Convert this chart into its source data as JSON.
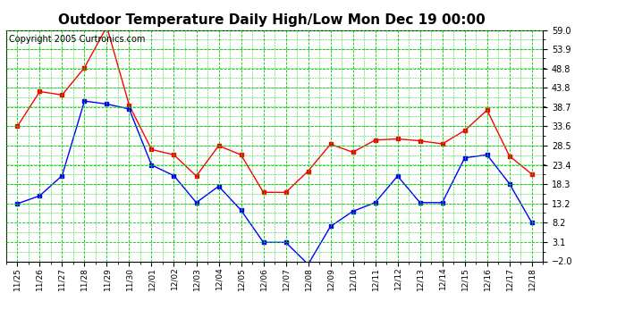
{
  "title": "Outdoor Temperature Daily High/Low Mon Dec 19 00:00",
  "copyright": "Copyright 2005 Curtronics.com",
  "x_labels": [
    "11/25",
    "11/26",
    "11/27",
    "11/28",
    "11/29",
    "11/30",
    "12/01",
    "12/02",
    "12/03",
    "12/04",
    "12/05",
    "12/06",
    "12/07",
    "12/08",
    "12/09",
    "12/10",
    "12/11",
    "12/12",
    "12/13",
    "12/14",
    "12/15",
    "12/16",
    "12/17",
    "12/18"
  ],
  "high_temps": [
    33.6,
    42.8,
    41.9,
    49.1,
    59.9,
    39.2,
    27.5,
    26.1,
    20.5,
    28.5,
    26.1,
    16.2,
    16.2,
    21.8,
    28.9,
    26.8,
    30.0,
    30.3,
    29.8,
    29.0,
    32.5,
    37.9,
    25.8,
    21.0
  ],
  "low_temps": [
    13.2,
    15.3,
    20.6,
    40.3,
    39.5,
    38.2,
    23.4,
    20.6,
    13.5,
    17.8,
    11.5,
    3.0,
    3.0,
    -2.8,
    7.2,
    11.2,
    13.5,
    20.5,
    13.5,
    13.5,
    25.3,
    26.1,
    18.5,
    8.2
  ],
  "y_ticks": [
    -2.0,
    3.1,
    8.2,
    13.2,
    18.3,
    23.4,
    28.5,
    33.6,
    38.7,
    43.8,
    48.8,
    53.9,
    59.0
  ],
  "y_min": -2.0,
  "y_max": 59.0,
  "high_color": "#ff0000",
  "low_color": "#0000ff",
  "bg_color": "#ffffff",
  "grid_color": "#00cc00",
  "border_color": "#000000",
  "title_fontsize": 11,
  "copyright_fontsize": 7
}
